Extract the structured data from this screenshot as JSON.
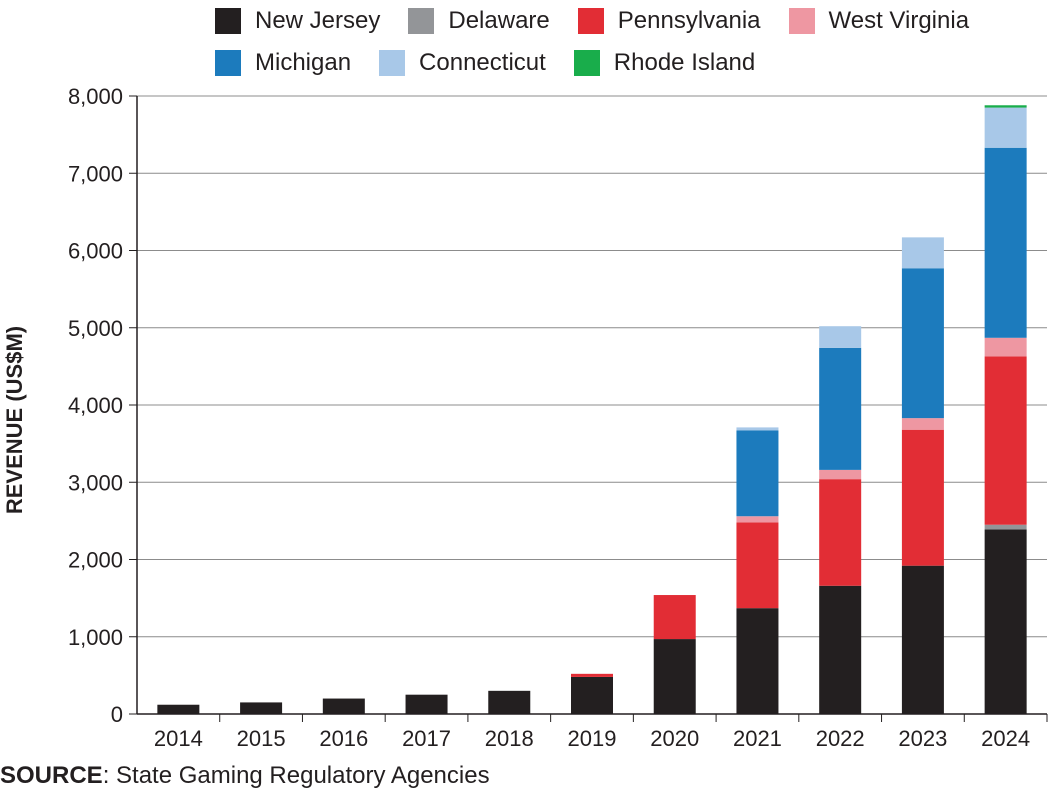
{
  "chart_data": {
    "type": "bar",
    "stacked": true,
    "title": "",
    "xlabel": "",
    "ylabel": "REVENUE (US$M)",
    "ylim": [
      0,
      8000
    ],
    "yticks": [
      0,
      1000,
      2000,
      3000,
      4000,
      5000,
      6000,
      7000,
      8000
    ],
    "ytick_labels": [
      "0",
      "1,000",
      "2,000",
      "3,000",
      "4,000",
      "5,000",
      "6,000",
      "7,000",
      "8,000"
    ],
    "categories": [
      "2014",
      "2015",
      "2016",
      "2017",
      "2018",
      "2019",
      "2020",
      "2021",
      "2022",
      "2023",
      "2024"
    ],
    "grid": "horizontal",
    "legend_position": "top",
    "series": [
      {
        "name": "New Jersey",
        "color": "#231f20",
        "values": [
          120,
          150,
          200,
          250,
          300,
          480,
          970,
          1370,
          1660,
          1920,
          2390
        ]
      },
      {
        "name": "Delaware",
        "color": "#939598",
        "values": [
          0,
          0,
          0,
          0,
          0,
          0,
          0,
          0,
          0,
          0,
          60
        ]
      },
      {
        "name": "Pennsylvania",
        "color": "#e22d35",
        "values": [
          0,
          0,
          0,
          0,
          0,
          40,
          570,
          1110,
          1380,
          1760,
          2180
        ]
      },
      {
        "name": "West Virginia",
        "color": "#ee97a2",
        "values": [
          0,
          0,
          0,
          0,
          0,
          0,
          0,
          80,
          120,
          150,
          240
        ]
      },
      {
        "name": "Michigan",
        "color": "#1c7bbd",
        "values": [
          0,
          0,
          0,
          0,
          0,
          0,
          0,
          1110,
          1580,
          1940,
          2460
        ]
      },
      {
        "name": "Connecticut",
        "color": "#a8c8e8",
        "values": [
          0,
          0,
          0,
          0,
          0,
          0,
          0,
          40,
          280,
          400,
          520
        ]
      },
      {
        "name": "Rhode Island",
        "color": "#19ad4b",
        "values": [
          0,
          0,
          0,
          0,
          0,
          0,
          0,
          0,
          0,
          0,
          30
        ]
      }
    ]
  },
  "source": {
    "label": "SOURCE",
    "text": ": State Gaming Regulatory Agencies"
  }
}
